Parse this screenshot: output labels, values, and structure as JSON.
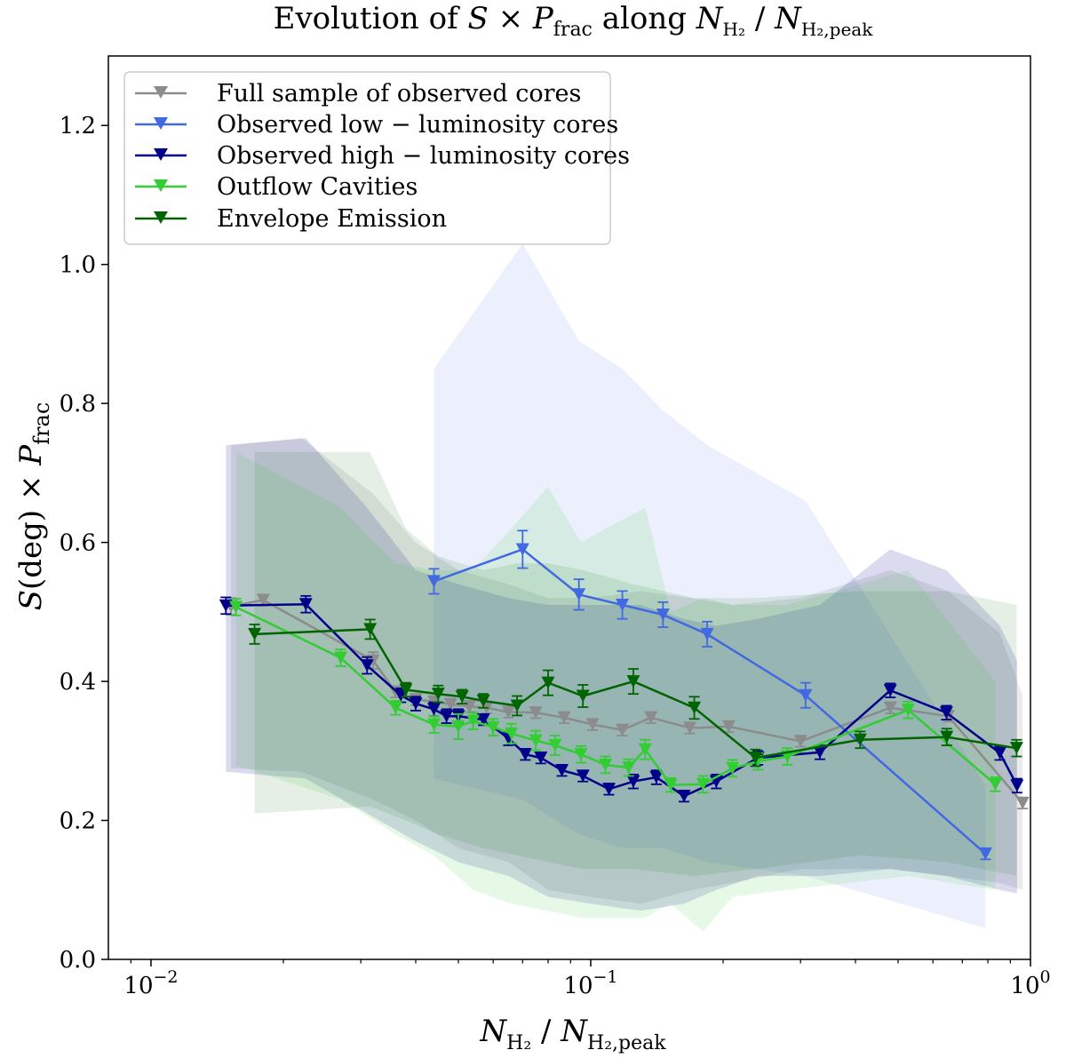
{
  "chart_data": {
    "type": "line",
    "title": "Evolution of S × P_frac along N_H2 / N_H2,peak",
    "title_parts": {
      "pre": "Evolution of ",
      "S": "S",
      "times": " × ",
      "P": "P",
      "P_sub": "frac",
      "mid": " along ",
      "N1": "N",
      "N1_sub": "H₂",
      "slash": " / ",
      "N2": "N",
      "N2_sub": "H₂,peak"
    },
    "xlabel_parts": {
      "N1": "N",
      "N1_sub": "H₂",
      "slash": " / ",
      "N2": "N",
      "N2_sub": "H₂,peak"
    },
    "ylabel_parts": {
      "S": "S",
      "deg": "(deg)",
      "times": " × ",
      "P": "P",
      "P_sub": "frac"
    },
    "xscale": "log",
    "xlim": [
      0.008,
      1.0
    ],
    "ylim": [
      0.0,
      1.3
    ],
    "x_ticks": [
      {
        "value": 0.01,
        "base": "10",
        "exp": "−2"
      },
      {
        "value": 0.1,
        "base": "10",
        "exp": "−1"
      },
      {
        "value": 1.0,
        "base": "10",
        "exp": "0"
      }
    ],
    "y_ticks": [
      "0.0",
      "0.2",
      "0.4",
      "0.6",
      "0.8",
      "1.0",
      "1.2"
    ],
    "legend_position": "upper-left",
    "series": [
      {
        "name": "Full sample of observed cores",
        "legend_text": "Full sample of observed cores",
        "color": "#8c8c8c",
        "band_alpha": 0.18,
        "points": [
          [
            0.0152,
            0.508,
            0.012
          ],
          [
            0.018,
            0.517,
            0.008
          ],
          [
            0.032,
            0.43,
            0.012
          ],
          [
            0.036,
            0.385,
            0.008
          ],
          [
            0.04,
            0.374,
            0.008
          ],
          [
            0.044,
            0.371,
            0.008
          ],
          [
            0.048,
            0.367,
            0.008
          ],
          [
            0.053,
            0.364,
            0.008
          ],
          [
            0.058,
            0.362,
            0.008
          ],
          [
            0.065,
            0.356,
            0.008
          ],
          [
            0.075,
            0.355,
            0.008
          ],
          [
            0.087,
            0.348,
            0.008
          ],
          [
            0.101,
            0.338,
            0.008
          ],
          [
            0.118,
            0.33,
            0.008
          ],
          [
            0.137,
            0.348,
            0.008
          ],
          [
            0.168,
            0.333,
            0.008
          ],
          [
            0.206,
            0.335,
            0.008
          ],
          [
            0.3,
            0.314,
            0.008
          ],
          [
            0.48,
            0.362,
            0.008
          ],
          [
            0.65,
            0.35,
            0.008
          ],
          [
            0.96,
            0.225,
            0.008
          ]
        ],
        "band": [
          [
            0.0152,
            0.275,
            0.74
          ],
          [
            0.022,
            0.27,
            0.75
          ],
          [
            0.032,
            0.23,
            0.67
          ],
          [
            0.04,
            0.2,
            0.6
          ],
          [
            0.05,
            0.16,
            0.56
          ],
          [
            0.065,
            0.14,
            0.54
          ],
          [
            0.08,
            0.1,
            0.52
          ],
          [
            0.1,
            0.09,
            0.52
          ],
          [
            0.13,
            0.08,
            0.53
          ],
          [
            0.17,
            0.1,
            0.52
          ],
          [
            0.21,
            0.11,
            0.51
          ],
          [
            0.3,
            0.13,
            0.52
          ],
          [
            0.48,
            0.13,
            0.56
          ],
          [
            0.65,
            0.12,
            0.53
          ],
          [
            0.85,
            0.11,
            0.47
          ],
          [
            0.96,
            0.1,
            0.38
          ]
        ]
      },
      {
        "name": "Observed low-luminosity cores",
        "legend_text": "Observed low − luminosity cores",
        "color": "#4169e1",
        "band_alpha": 0.1,
        "points": [
          [
            0.044,
            0.544,
            0.018
          ],
          [
            0.07,
            0.59,
            0.027
          ],
          [
            0.094,
            0.525,
            0.022
          ],
          [
            0.118,
            0.51,
            0.02
          ],
          [
            0.146,
            0.496,
            0.018
          ],
          [
            0.184,
            0.468,
            0.018
          ],
          [
            0.308,
            0.38,
            0.018
          ],
          [
            0.79,
            0.152,
            0.008
          ]
        ],
        "band": [
          [
            0.044,
            0.26,
            0.85
          ],
          [
            0.07,
            0.23,
            1.03
          ],
          [
            0.094,
            0.18,
            0.89
          ],
          [
            0.118,
            0.16,
            0.85
          ],
          [
            0.146,
            0.16,
            0.79
          ],
          [
            0.184,
            0.14,
            0.74
          ],
          [
            0.308,
            0.12,
            0.66
          ],
          [
            0.79,
            0.045,
            0.25
          ]
        ]
      },
      {
        "name": "Observed high-luminosity cores",
        "legend_text": "Observed high − luminosity cores",
        "color": "#00008b",
        "band_alpha": 0.14,
        "points": [
          [
            0.0148,
            0.509,
            0.012
          ],
          [
            0.0225,
            0.511,
            0.012
          ],
          [
            0.031,
            0.423,
            0.012
          ],
          [
            0.037,
            0.38,
            0.01
          ],
          [
            0.04,
            0.368,
            0.01
          ],
          [
            0.044,
            0.36,
            0.01
          ],
          [
            0.047,
            0.35,
            0.01
          ],
          [
            0.05,
            0.35,
            0.01
          ],
          [
            0.057,
            0.345,
            0.008
          ],
          [
            0.065,
            0.318,
            0.01
          ],
          [
            0.071,
            0.295,
            0.008
          ],
          [
            0.077,
            0.29,
            0.008
          ],
          [
            0.086,
            0.272,
            0.008
          ],
          [
            0.096,
            0.264,
            0.008
          ],
          [
            0.11,
            0.245,
            0.008
          ],
          [
            0.125,
            0.256,
            0.01
          ],
          [
            0.141,
            0.262,
            0.01
          ],
          [
            0.163,
            0.235,
            0.008
          ],
          [
            0.193,
            0.256,
            0.01
          ],
          [
            0.24,
            0.29,
            0.01
          ],
          [
            0.332,
            0.298,
            0.01
          ],
          [
            0.48,
            0.387,
            0.01
          ],
          [
            0.644,
            0.355,
            0.01
          ],
          [
            0.852,
            0.297,
            0.01
          ],
          [
            0.932,
            0.25,
            0.01
          ]
        ],
        "band": [
          [
            0.0148,
            0.27,
            0.74
          ],
          [
            0.0225,
            0.26,
            0.75
          ],
          [
            0.031,
            0.21,
            0.65
          ],
          [
            0.04,
            0.17,
            0.56
          ],
          [
            0.05,
            0.14,
            0.54
          ],
          [
            0.065,
            0.12,
            0.52
          ],
          [
            0.08,
            0.09,
            0.51
          ],
          [
            0.1,
            0.08,
            0.51
          ],
          [
            0.13,
            0.07,
            0.51
          ],
          [
            0.163,
            0.08,
            0.49
          ],
          [
            0.193,
            0.1,
            0.48
          ],
          [
            0.24,
            0.12,
            0.49
          ],
          [
            0.332,
            0.12,
            0.51
          ],
          [
            0.48,
            0.13,
            0.59
          ],
          [
            0.644,
            0.12,
            0.56
          ],
          [
            0.852,
            0.1,
            0.48
          ],
          [
            0.932,
            0.095,
            0.43
          ]
        ]
      },
      {
        "name": "Outflow Cavities",
        "legend_text": "Outflow Cavities",
        "color": "#32cd32",
        "band_alpha": 0.12,
        "points": [
          [
            0.0156,
            0.507,
            0.012
          ],
          [
            0.027,
            0.434,
            0.012
          ],
          [
            0.036,
            0.362,
            0.01
          ],
          [
            0.044,
            0.338,
            0.012
          ],
          [
            0.05,
            0.335,
            0.018
          ],
          [
            0.054,
            0.343,
            0.012
          ],
          [
            0.06,
            0.334,
            0.012
          ],
          [
            0.066,
            0.325,
            0.014
          ],
          [
            0.075,
            0.315,
            0.014
          ],
          [
            0.083,
            0.308,
            0.014
          ],
          [
            0.095,
            0.295,
            0.012
          ],
          [
            0.108,
            0.28,
            0.012
          ],
          [
            0.122,
            0.276,
            0.012
          ],
          [
            0.133,
            0.302,
            0.014
          ],
          [
            0.152,
            0.251,
            0.01
          ],
          [
            0.18,
            0.252,
            0.012
          ],
          [
            0.21,
            0.275,
            0.012
          ],
          [
            0.24,
            0.285,
            0.012
          ],
          [
            0.28,
            0.292,
            0.012
          ],
          [
            0.527,
            0.359,
            0.012
          ],
          [
            0.832,
            0.252,
            0.01
          ]
        ],
        "band": [
          [
            0.0156,
            0.28,
            0.73
          ],
          [
            0.027,
            0.23,
            0.65
          ],
          [
            0.036,
            0.18,
            0.57
          ],
          [
            0.044,
            0.15,
            0.56
          ],
          [
            0.054,
            0.1,
            0.56
          ],
          [
            0.066,
            0.08,
            0.62
          ],
          [
            0.08,
            0.07,
            0.68
          ],
          [
            0.095,
            0.06,
            0.6
          ],
          [
            0.108,
            0.06,
            0.62
          ],
          [
            0.133,
            0.06,
            0.65
          ],
          [
            0.152,
            0.08,
            0.5
          ],
          [
            0.18,
            0.04,
            0.52
          ],
          [
            0.21,
            0.09,
            0.51
          ],
          [
            0.28,
            0.1,
            0.51
          ],
          [
            0.527,
            0.12,
            0.56
          ],
          [
            0.832,
            0.1,
            0.4
          ]
        ]
      },
      {
        "name": "Envelope Emission",
        "legend_text": "Envelope Emission",
        "color": "#006400",
        "band_alpha": 0.1,
        "points": [
          [
            0.0172,
            0.468,
            0.014
          ],
          [
            0.0315,
            0.475,
            0.014
          ],
          [
            0.038,
            0.388,
            0.01
          ],
          [
            0.045,
            0.382,
            0.012
          ],
          [
            0.051,
            0.378,
            0.01
          ],
          [
            0.057,
            0.372,
            0.01
          ],
          [
            0.068,
            0.365,
            0.014
          ],
          [
            0.08,
            0.398,
            0.018
          ],
          [
            0.096,
            0.379,
            0.016
          ],
          [
            0.125,
            0.4,
            0.018
          ],
          [
            0.172,
            0.362,
            0.016
          ],
          [
            0.237,
            0.29,
            0.012
          ],
          [
            0.41,
            0.316,
            0.012
          ],
          [
            0.645,
            0.32,
            0.012
          ],
          [
            0.93,
            0.304,
            0.012
          ]
        ],
        "band": [
          [
            0.0172,
            0.21,
            0.73
          ],
          [
            0.0315,
            0.22,
            0.73
          ],
          [
            0.038,
            0.2,
            0.62
          ],
          [
            0.045,
            0.18,
            0.58
          ],
          [
            0.057,
            0.16,
            0.56
          ],
          [
            0.068,
            0.15,
            0.57
          ],
          [
            0.08,
            0.14,
            0.57
          ],
          [
            0.096,
            0.13,
            0.56
          ],
          [
            0.125,
            0.13,
            0.54
          ],
          [
            0.172,
            0.12,
            0.52
          ],
          [
            0.237,
            0.13,
            0.52
          ],
          [
            0.41,
            0.15,
            0.53
          ],
          [
            0.645,
            0.14,
            0.53
          ],
          [
            0.93,
            0.12,
            0.51
          ]
        ]
      }
    ]
  }
}
